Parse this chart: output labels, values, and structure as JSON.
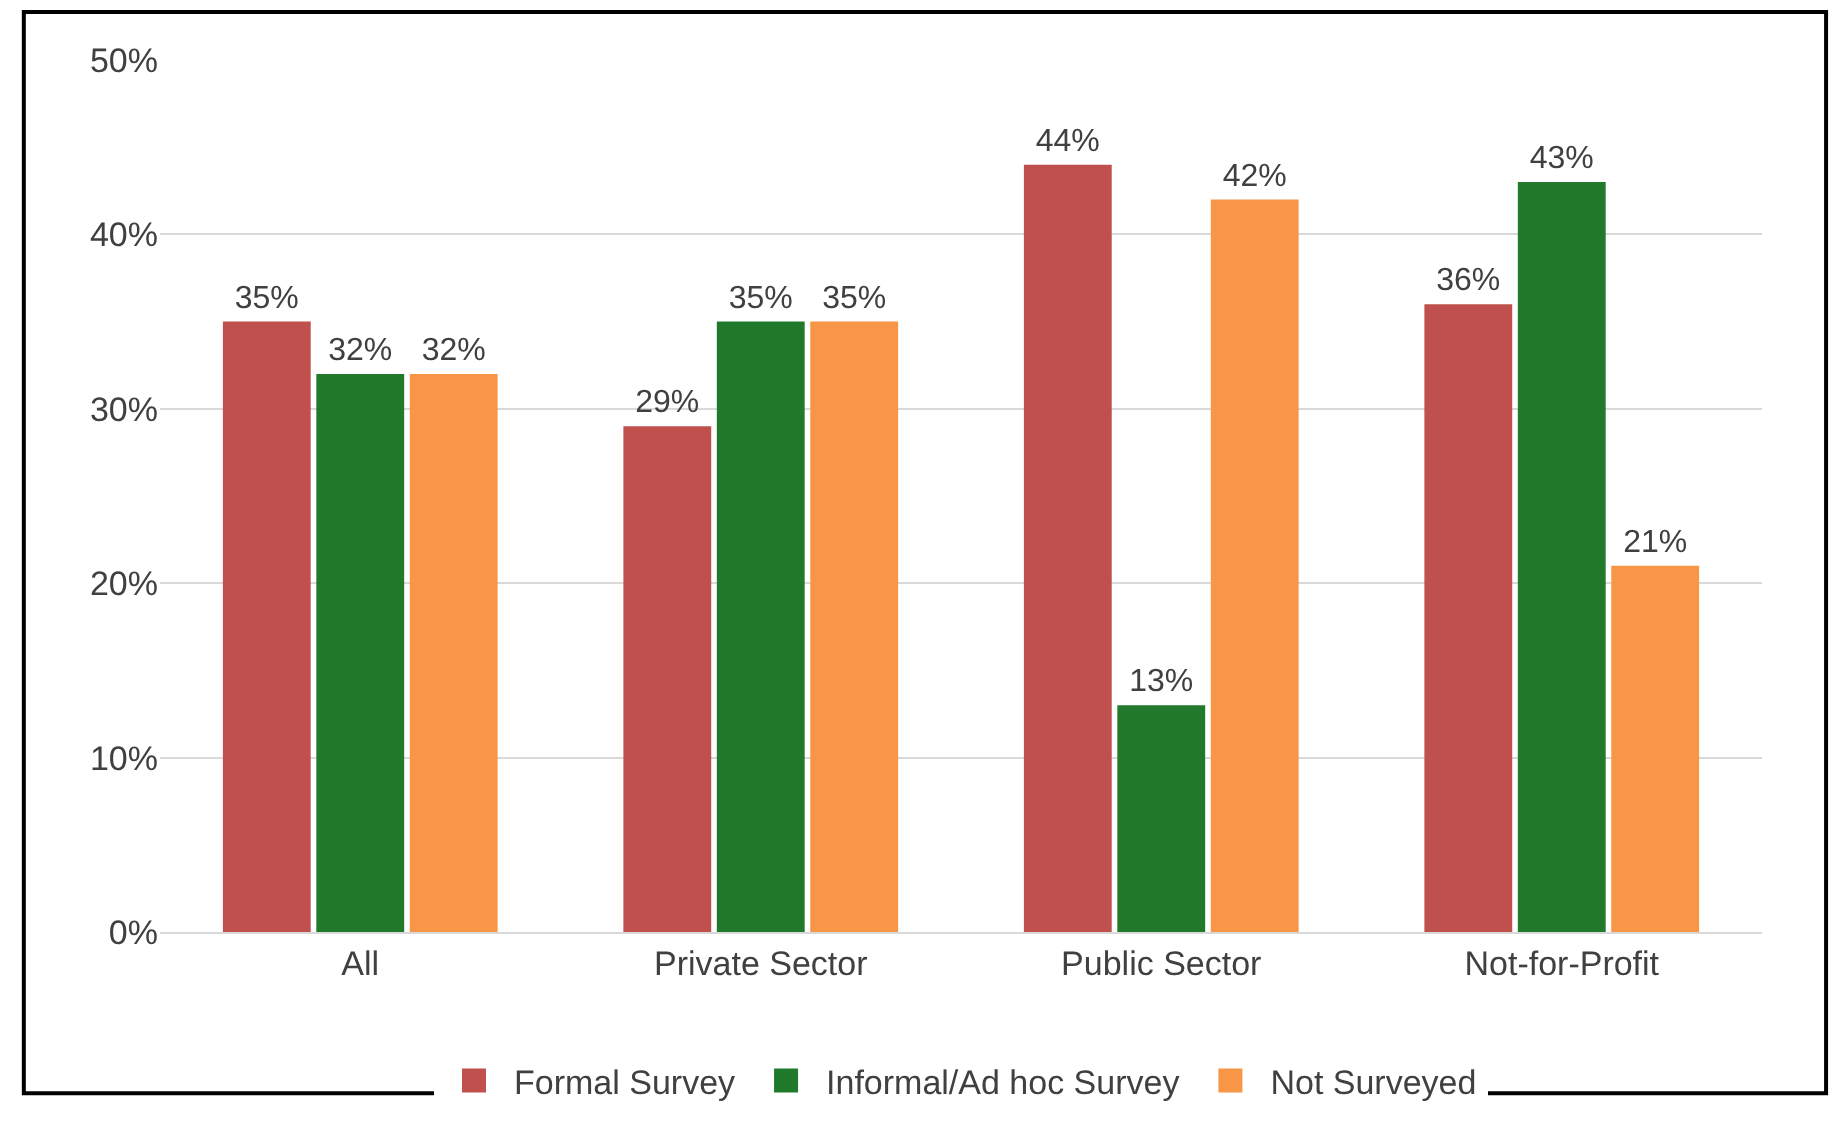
{
  "chart_data": {
    "type": "bar",
    "categories": [
      "All",
      "Private Sector",
      "Public Sector",
      "Not-for-Profit"
    ],
    "series": [
      {
        "name": "Formal Survey",
        "color": "#c0504d",
        "values": [
          35,
          29,
          44,
          36
        ],
        "value_labels": [
          "35%",
          "29%",
          "44%",
          "36%"
        ]
      },
      {
        "name": "Informal/Ad hoc Survey",
        "color": "#217a2b",
        "values": [
          32,
          35,
          13,
          43
        ],
        "value_labels": [
          "32%",
          "35%",
          "13%",
          "43%"
        ]
      },
      {
        "name": "Not Surveyed",
        "color": "#f79646",
        "values": [
          32,
          35,
          42,
          21
        ],
        "value_labels": [
          "32%",
          "35%",
          "42%",
          "21%"
        ]
      }
    ],
    "ylim": [
      0,
      50
    ],
    "yticks": [
      {
        "value": 0,
        "label": "0%"
      },
      {
        "value": 10,
        "label": "10%"
      },
      {
        "value": 20,
        "label": "20%"
      },
      {
        "value": 30,
        "label": "30%"
      },
      {
        "value": 40,
        "label": "40%"
      },
      {
        "value": 50,
        "label": "50%"
      }
    ],
    "grid": "y",
    "legend": "bottom"
  }
}
